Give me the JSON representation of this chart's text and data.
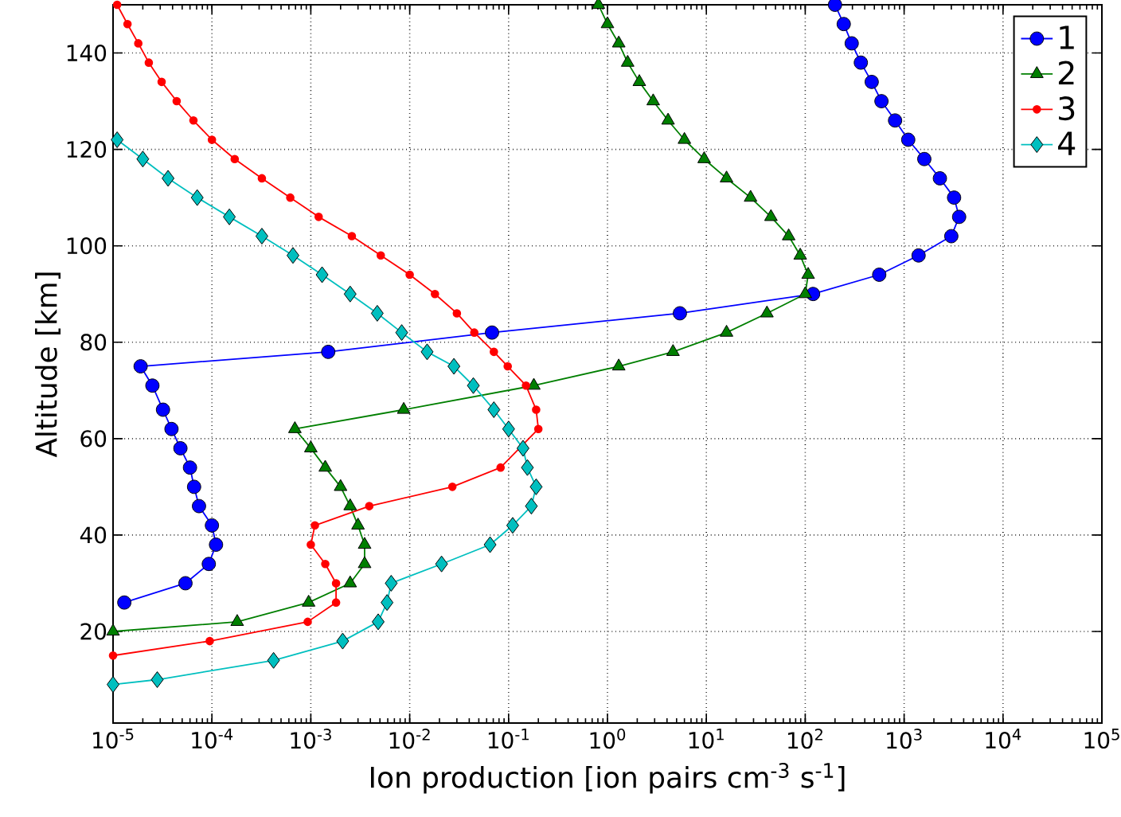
{
  "chart_data": {
    "type": "line",
    "xlabel": "Ion production [ion pairs cm$^{-3}$ s$^{-1}$]",
    "ylabel": "Altitude [km]",
    "log": "x",
    "grid": true,
    "legend": "top right",
    "xlim": [
      1e-05,
      100000.0
    ],
    "ylim": [
      1,
      150
    ],
    "xticks": [
      {
        "value": 1e-05,
        "label": "10$^{-5}$"
      },
      {
        "value": 0.0001,
        "label": "10$^{-4}$"
      },
      {
        "value": 0.001,
        "label": "10$^{-3}$"
      },
      {
        "value": 0.01,
        "label": "10$^{-2}$"
      },
      {
        "value": 0.1,
        "label": "10$^{-1}$"
      },
      {
        "value": 1,
        "label": "10$^{0}$"
      },
      {
        "value": 10,
        "label": "10$^{1}$"
      },
      {
        "value": 100,
        "label": "10$^{2}$"
      },
      {
        "value": 1000,
        "label": "10$^{3}$"
      },
      {
        "value": 10000,
        "label": "10$^{4}$"
      },
      {
        "value": 100000,
        "label": "10$^{5}$"
      }
    ],
    "yticks": [
      20,
      40,
      60,
      80,
      100,
      120,
      140
    ],
    "series": [
      {
        "name": "1",
        "color": "#0000ff",
        "marker": "circle",
        "x": [
          200,
          245,
          295,
          365,
          470,
          590,
          810,
          1100,
          1600,
          2300,
          3200,
          3600,
          3000,
          1400,
          560,
          120,
          5.4,
          0.068,
          0.0015,
          1.9e-05,
          2.5e-05,
          3.2e-05,
          3.9e-05,
          4.8e-05,
          6e-05,
          6.6e-05,
          7.4e-05,
          0.0001,
          0.00011,
          9.3e-05,
          5.4e-05,
          1.3e-05
        ],
        "values": [
          150,
          146,
          142,
          138,
          134,
          130,
          126,
          122,
          118,
          114,
          110,
          106,
          102,
          98,
          94,
          90,
          86,
          82,
          78,
          75,
          71,
          66,
          62,
          58,
          54,
          50,
          46,
          42,
          38,
          34,
          30,
          26
        ]
      },
      {
        "name": "2",
        "color": "#007f00",
        "marker": "triangle",
        "x": [
          0.81,
          1.0,
          1.3,
          1.6,
          2.1,
          2.9,
          4.1,
          6.0,
          9.5,
          16,
          28,
          45,
          68,
          89,
          107,
          100,
          41,
          16,
          4.6,
          1.3,
          0.18,
          0.0087,
          0.00069,
          0.001,
          0.0014,
          0.002,
          0.0025,
          0.003,
          0.0035,
          0.0035,
          0.0025,
          0.00095,
          0.00018,
          1e-05
        ],
        "values": [
          150,
          146,
          142,
          138,
          134,
          130,
          126,
          122,
          118,
          114,
          110,
          106,
          102,
          98,
          94,
          90,
          86,
          82,
          78,
          75,
          71,
          66,
          62,
          58,
          54,
          50,
          46,
          42,
          38,
          34,
          30,
          26,
          22,
          20
        ]
      },
      {
        "name": "3",
        "color": "#ff0000",
        "marker": "point",
        "x": [
          1.1e-05,
          1.4e-05,
          1.8e-05,
          2.3e-05,
          3.1e-05,
          4.4e-05,
          6.5e-05,
          0.0001,
          0.00017,
          0.00032,
          0.00062,
          0.0012,
          0.0026,
          0.0051,
          0.01,
          0.018,
          0.03,
          0.045,
          0.071,
          0.098,
          0.15,
          0.19,
          0.2,
          0.083,
          0.027,
          0.0039,
          0.0011,
          0.001,
          0.0014,
          0.0018,
          0.0018,
          0.00093,
          9.5e-05,
          1e-05
        ],
        "values": [
          150,
          146,
          142,
          138,
          134,
          130,
          126,
          122,
          118,
          114,
          110,
          106,
          102,
          98,
          94,
          90,
          86,
          82,
          78,
          75,
          71,
          66,
          62,
          54,
          50,
          46,
          42,
          38,
          34,
          30,
          26,
          22,
          18,
          15
        ]
      },
      {
        "name": "4",
        "color": "#00bfbf",
        "marker": "diamond",
        "x": [
          1.1e-05,
          2e-05,
          3.6e-05,
          7.1e-05,
          0.00015,
          0.00032,
          0.00066,
          0.0013,
          0.0025,
          0.0047,
          0.0083,
          0.015,
          0.028,
          0.044,
          0.071,
          0.1,
          0.14,
          0.155,
          0.19,
          0.17,
          0.11,
          0.065,
          0.021,
          0.0065,
          0.0059,
          0.0048,
          0.0021,
          0.00042,
          2.8e-05,
          1e-05
        ],
        "values": [
          122,
          118,
          114,
          110,
          106,
          102,
          98,
          94,
          90,
          86,
          82,
          78,
          75,
          71,
          66,
          62,
          58,
          54,
          50,
          46,
          42,
          38,
          34,
          30,
          26,
          22,
          18,
          14,
          10,
          9
        ]
      }
    ]
  }
}
